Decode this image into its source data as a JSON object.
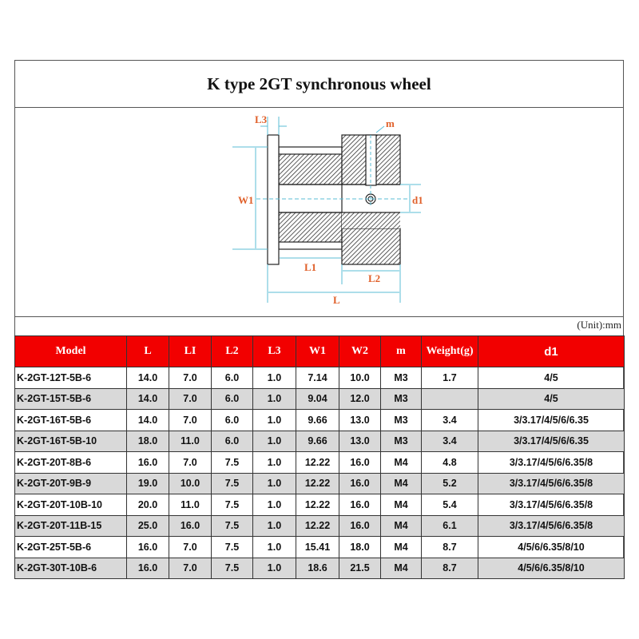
{
  "title": "K type 2GT synchronous wheel",
  "unit": "(Unit):mm",
  "diagram": {
    "labels": {
      "L3": "L3",
      "m": "m",
      "W1": "W1",
      "d1": "d1",
      "L1": "L1",
      "L2": "L2",
      "L": "L"
    },
    "colors": {
      "dimension": "#5bbcd6",
      "label": "#e0602a"
    }
  },
  "table": {
    "headers": [
      "Model",
      "L",
      "LI",
      "L2",
      "L3",
      "W1",
      "W2",
      "m",
      "Weight(g)",
      "d1"
    ],
    "rows": [
      [
        "K-2GT-12T-5B-6",
        "14.0",
        "7.0",
        "6.0",
        "1.0",
        "7.14",
        "10.0",
        "M3",
        "1.7",
        "4/5"
      ],
      [
        "K-2GT-15T-5B-6",
        "14.0",
        "7.0",
        "6.0",
        "1.0",
        "9.04",
        "12.0",
        "M3",
        "",
        "4/5"
      ],
      [
        "K-2GT-16T-5B-6",
        "14.0",
        "7.0",
        "6.0",
        "1.0",
        "9.66",
        "13.0",
        "M3",
        "3.4",
        "3/3.17/4/5/6/6.35"
      ],
      [
        "K-2GT-16T-5B-10",
        "18.0",
        "11.0",
        "6.0",
        "1.0",
        "9.66",
        "13.0",
        "M3",
        "3.4",
        "3/3.17/4/5/6/6.35"
      ],
      [
        "K-2GT-20T-8B-6",
        "16.0",
        "7.0",
        "7.5",
        "1.0",
        "12.22",
        "16.0",
        "M4",
        "4.8",
        "3/3.17/4/5/6/6.35/8"
      ],
      [
        "K-2GT-20T-9B-9",
        "19.0",
        "10.0",
        "7.5",
        "1.0",
        "12.22",
        "16.0",
        "M4",
        "5.2",
        "3/3.17/4/5/6/6.35/8"
      ],
      [
        "K-2GT-20T-10B-10",
        "20.0",
        "11.0",
        "7.5",
        "1.0",
        "12.22",
        "16.0",
        "M4",
        "5.4",
        "3/3.17/4/5/6/6.35/8"
      ],
      [
        "K-2GT-20T-11B-15",
        "25.0",
        "16.0",
        "7.5",
        "1.0",
        "12.22",
        "16.0",
        "M4",
        "6.1",
        "3/3.17/4/5/6/6.35/8"
      ],
      [
        "K-2GT-25T-5B-6",
        "16.0",
        "7.0",
        "7.5",
        "1.0",
        "15.41",
        "18.0",
        "M4",
        "8.7",
        "4/5/6/6.35/8/10"
      ],
      [
        "K-2GT-30T-10B-6",
        "16.0",
        "7.0",
        "7.5",
        "1.0",
        "18.6",
        "21.5",
        "M4",
        "8.7",
        "4/5/6/6.35/8/10"
      ]
    ],
    "header_color": "#f20000",
    "alt_row_color": "#d9d9d9"
  }
}
